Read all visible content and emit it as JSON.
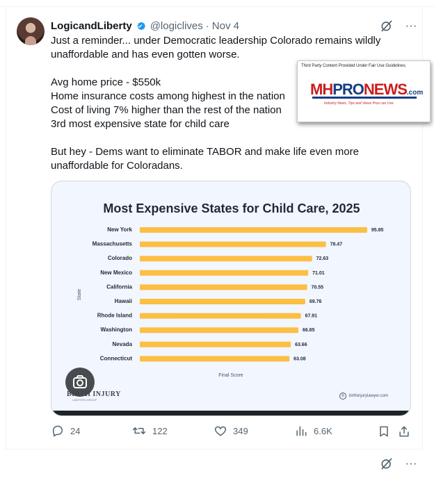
{
  "post": {
    "author_name": "LogicandLiberty",
    "handle": "@logiclives",
    "separator": "·",
    "date": "Nov 4",
    "text_lines": [
      "Just a reminder... under Democratic leadership Colorado remains wildly",
      "unaffordable and has even gotten worse.",
      "",
      "Avg home price - $550k",
      "Home insurance costs among highest in the nation",
      "Cost of living 7% higher than the rest of the nation",
      "3rd most expensive state for child care",
      "",
      "But hey - Dems want to eliminate TABOR and make life even more",
      "unaffordable for Coloradans."
    ]
  },
  "overlay": {
    "notice": "Third Party Content Provided Under Fair Use Guidelines.",
    "logo_mh": "MH",
    "logo_pro": "PRO",
    "logo_news": "NEWS",
    "logo_com": ".com",
    "tagline": "Industry News, Tips and Views Pros can Use"
  },
  "chart_data": {
    "type": "bar",
    "title": "Most Expensive States for Child Care, 2025",
    "xlabel": "Final Score",
    "ylabel": "State",
    "categories": [
      "New York",
      "Massachusetts",
      "Colorado",
      "New Mexico",
      "California",
      "Hawaii",
      "Rhode Island",
      "Washington",
      "Nevada",
      "Connecticut"
    ],
    "values": [
      95.85,
      78.47,
      72.63,
      71.01,
      70.55,
      69.76,
      67.91,
      66.85,
      63.66,
      63.08
    ],
    "xlim": [
      0,
      100
    ],
    "grid": false,
    "bar_color": "#fbbf44"
  },
  "media": {
    "watermark": "BIRTH INJURY",
    "watermark_sub": "LAWYERS GROUP",
    "site": "birthinjurylawyer.com"
  },
  "actions": {
    "replies": "24",
    "reposts": "122",
    "likes": "349",
    "views": "6.6K"
  },
  "icons": {
    "verified": "verified-badge-icon",
    "grok": "grok-icon",
    "more": "more-icon",
    "reply": "reply-icon",
    "repost": "repost-icon",
    "like": "like-icon",
    "views": "views-icon",
    "bookmark": "bookmark-icon",
    "share": "share-icon"
  },
  "colors": {
    "verified": "#1d9bf0",
    "muted": "#536471",
    "chart_bar": "#fbbf44"
  }
}
